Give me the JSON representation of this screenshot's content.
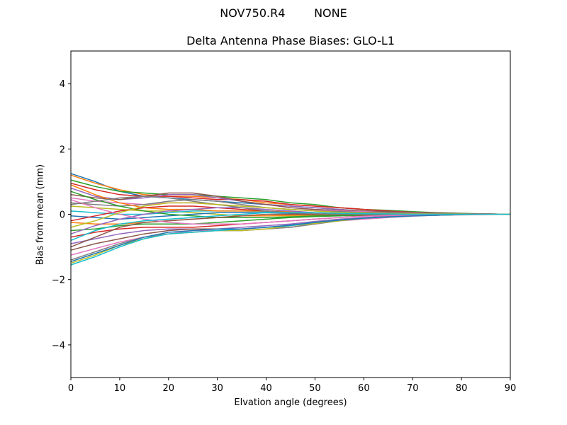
{
  "figure": {
    "suptitle": "NOV750.R4        NONE"
  },
  "chart_data": {
    "type": "line",
    "title": "Delta Antenna Phase Biases: GLO-L1",
    "xlabel": "Elvation angle (degrees)",
    "ylabel": "Bias from mean (mm)",
    "xlim": [
      0,
      90
    ],
    "ylim": [
      -5,
      5
    ],
    "xticks": [
      0,
      10,
      20,
      30,
      40,
      50,
      60,
      70,
      80,
      90
    ],
    "yticks": [
      -4,
      -2,
      0,
      2,
      4
    ],
    "ytick_labels": [
      "−4",
      "−2",
      "0",
      "2",
      "4"
    ],
    "grid": false,
    "colors": [
      "#1f77b4",
      "#ff7f0e",
      "#2ca02c",
      "#d62728",
      "#9467bd",
      "#8c564b",
      "#e377c2",
      "#7f7f7f",
      "#bcbd22",
      "#17becf"
    ],
    "x": [
      0,
      5,
      10,
      15,
      20,
      25,
      30,
      35,
      40,
      45,
      50,
      55,
      60,
      65,
      70,
      75,
      80,
      85,
      90
    ],
    "series": [
      {
        "values": [
          1.25,
          1.0,
          0.7,
          0.55,
          0.5,
          0.45,
          0.4,
          0.35,
          0.3,
          0.25,
          0.2,
          0.15,
          0.1,
          0.08,
          0.05,
          0.03,
          0.02,
          0.01,
          0.0
        ]
      },
      {
        "values": [
          1.2,
          0.95,
          0.75,
          0.6,
          0.55,
          0.55,
          0.5,
          0.45,
          0.35,
          0.3,
          0.25,
          0.2,
          0.15,
          0.1,
          0.07,
          0.04,
          0.02,
          0.01,
          0.0
        ]
      },
      {
        "values": [
          1.05,
          0.85,
          0.7,
          0.65,
          0.6,
          0.6,
          0.55,
          0.5,
          0.45,
          0.35,
          0.3,
          0.2,
          0.15,
          0.12,
          0.08,
          0.05,
          0.03,
          0.01,
          0.0
        ]
      },
      {
        "values": [
          0.95,
          0.75,
          0.6,
          0.55,
          0.55,
          0.5,
          0.45,
          0.45,
          0.4,
          0.3,
          0.25,
          0.2,
          0.15,
          0.1,
          0.06,
          0.04,
          0.02,
          0.01,
          0.0
        ]
      },
      {
        "values": [
          0.8,
          0.55,
          0.45,
          0.5,
          0.6,
          0.6,
          0.5,
          0.4,
          0.3,
          0.25,
          0.2,
          0.15,
          0.1,
          0.08,
          0.05,
          0.03,
          0.02,
          0.01,
          0.0
        ]
      },
      {
        "values": [
          0.6,
          0.5,
          0.45,
          0.55,
          0.65,
          0.65,
          0.55,
          0.4,
          0.3,
          0.2,
          0.15,
          0.12,
          0.1,
          0.08,
          0.05,
          0.03,
          0.02,
          0.01,
          0.0
        ]
      },
      {
        "values": [
          0.5,
          0.4,
          0.35,
          0.3,
          0.35,
          0.35,
          0.3,
          0.25,
          0.2,
          0.15,
          0.12,
          0.1,
          0.08,
          0.05,
          0.04,
          0.02,
          0.01,
          0.0,
          0.0
        ]
      },
      {
        "values": [
          0.35,
          0.3,
          0.25,
          0.3,
          0.4,
          0.45,
          0.4,
          0.3,
          0.2,
          0.15,
          0.1,
          0.08,
          0.06,
          0.05,
          0.03,
          0.02,
          0.01,
          0.0,
          0.0
        ]
      },
      {
        "values": [
          0.25,
          0.2,
          0.15,
          0.1,
          0.1,
          0.05,
          0.0,
          -0.05,
          -0.05,
          -0.05,
          -0.03,
          -0.02,
          0.0,
          0.02,
          0.02,
          0.01,
          0.01,
          0.0,
          0.0
        ]
      },
      {
        "values": [
          0.1,
          0.05,
          0.0,
          0.0,
          0.05,
          0.1,
          0.1,
          0.1,
          0.08,
          0.05,
          0.03,
          0.02,
          0.02,
          0.02,
          0.01,
          0.01,
          0.0,
          0.0,
          0.0
        ]
      },
      {
        "values": [
          -0.05,
          -0.1,
          -0.15,
          -0.1,
          -0.05,
          0.0,
          0.05,
          0.05,
          0.05,
          0.03,
          0.02,
          0.01,
          0.0,
          0.0,
          0.0,
          0.0,
          0.0,
          0.0,
          0.0
        ]
      },
      {
        "values": [
          -0.25,
          -0.3,
          -0.3,
          -0.25,
          -0.2,
          -0.15,
          -0.1,
          -0.05,
          -0.05,
          -0.03,
          -0.02,
          -0.01,
          0.0,
          0.0,
          0.0,
          0.0,
          0.0,
          0.0,
          0.0
        ]
      },
      {
        "values": [
          -0.5,
          -0.45,
          -0.35,
          -0.3,
          -0.3,
          -0.3,
          -0.25,
          -0.2,
          -0.15,
          -0.1,
          -0.07,
          -0.05,
          -0.03,
          -0.02,
          -0.01,
          0.0,
          0.0,
          0.0,
          0.0
        ]
      },
      {
        "values": [
          -0.7,
          -0.55,
          -0.45,
          -0.4,
          -0.4,
          -0.4,
          -0.35,
          -0.3,
          -0.25,
          -0.2,
          -0.15,
          -0.1,
          -0.05,
          -0.03,
          -0.02,
          -0.01,
          0.0,
          0.0,
          0.0
        ]
      },
      {
        "values": [
          -0.9,
          -0.75,
          -0.6,
          -0.5,
          -0.45,
          -0.45,
          -0.45,
          -0.4,
          -0.35,
          -0.3,
          -0.22,
          -0.15,
          -0.1,
          -0.06,
          -0.04,
          -0.02,
          -0.01,
          0.0,
          0.0
        ]
      },
      {
        "values": [
          -1.1,
          -0.9,
          -0.75,
          -0.6,
          -0.5,
          -0.45,
          -0.45,
          -0.45,
          -0.4,
          -0.35,
          -0.25,
          -0.18,
          -0.12,
          -0.08,
          -0.05,
          -0.03,
          -0.01,
          0.0,
          0.0
        ]
      },
      {
        "values": [
          -1.25,
          -1.05,
          -0.85,
          -0.7,
          -0.6,
          -0.5,
          -0.5,
          -0.5,
          -0.45,
          -0.4,
          -0.3,
          -0.2,
          -0.15,
          -0.1,
          -0.06,
          -0.03,
          -0.02,
          -0.01,
          0.0
        ]
      },
      {
        "values": [
          -1.4,
          -1.15,
          -0.9,
          -0.7,
          -0.6,
          -0.55,
          -0.5,
          -0.5,
          -0.45,
          -0.4,
          -0.3,
          -0.2,
          -0.12,
          -0.08,
          -0.05,
          -0.03,
          -0.01,
          0.0,
          0.0
        ]
      },
      {
        "values": [
          -1.5,
          -1.25,
          -0.95,
          -0.75,
          -0.6,
          -0.55,
          -0.5,
          -0.5,
          -0.45,
          -0.35,
          -0.28,
          -0.2,
          -0.12,
          -0.08,
          -0.05,
          -0.03,
          -0.01,
          0.0,
          0.0
        ]
      },
      {
        "values": [
          -1.55,
          -1.3,
          -1.0,
          -0.75,
          -0.6,
          -0.55,
          -0.5,
          -0.45,
          -0.4,
          -0.35,
          -0.25,
          -0.18,
          -0.12,
          -0.08,
          -0.05,
          -0.03,
          -0.01,
          0.0,
          0.0
        ]
      },
      {
        "values": [
          -1.45,
          -1.2,
          -0.95,
          -0.7,
          -0.55,
          -0.5,
          -0.45,
          -0.45,
          -0.4,
          -0.33,
          -0.25,
          -0.18,
          -0.12,
          -0.08,
          -0.05,
          -0.03,
          -0.01,
          0.0,
          0.0
        ]
      },
      {
        "values": [
          0.9,
          0.6,
          0.35,
          0.2,
          0.15,
          0.15,
          0.1,
          0.1,
          0.1,
          0.08,
          0.05,
          0.03,
          0.02,
          0.02,
          0.01,
          0.01,
          0.0,
          0.0,
          0.0
        ]
      },
      {
        "values": [
          0.7,
          0.45,
          0.25,
          0.1,
          0.0,
          -0.05,
          -0.1,
          -0.1,
          -0.1,
          -0.08,
          -0.05,
          -0.03,
          -0.02,
          -0.01,
          0.0,
          0.0,
          0.0,
          0.0,
          0.0
        ]
      },
      {
        "values": [
          -0.2,
          -0.05,
          0.1,
          0.2,
          0.25,
          0.25,
          0.2,
          0.15,
          0.1,
          0.05,
          0.02,
          0.0,
          0.0,
          0.0,
          0.0,
          0.0,
          0.0,
          0.0,
          0.0
        ]
      },
      {
        "values": [
          -0.6,
          -0.35,
          -0.15,
          0.0,
          0.1,
          0.15,
          0.2,
          0.2,
          0.15,
          0.1,
          0.05,
          0.03,
          0.02,
          0.01,
          0.01,
          0.0,
          0.0,
          0.0,
          0.0
        ]
      },
      {
        "values": [
          -1.0,
          -0.7,
          -0.4,
          -0.25,
          -0.2,
          -0.15,
          -0.1,
          -0.05,
          0.0,
          0.0,
          0.0,
          0.0,
          0.0,
          0.0,
          0.0,
          0.0,
          0.0,
          0.0,
          0.0
        ]
      },
      {
        "values": [
          0.45,
          0.2,
          0.0,
          -0.15,
          -0.25,
          -0.3,
          -0.3,
          -0.3,
          -0.25,
          -0.2,
          -0.15,
          -0.1,
          -0.06,
          -0.04,
          -0.02,
          -0.01,
          0.0,
          0.0,
          0.0
        ]
      },
      {
        "values": [
          0.3,
          0.4,
          0.5,
          0.55,
          0.5,
          0.4,
          0.3,
          0.2,
          0.1,
          0.05,
          0.02,
          0.0,
          0.0,
          0.0,
          0.0,
          0.0,
          0.0,
          0.0,
          0.0
        ]
      },
      {
        "values": [
          -0.4,
          -0.2,
          0.05,
          0.25,
          0.35,
          0.35,
          0.3,
          0.25,
          0.2,
          0.15,
          0.1,
          0.06,
          0.04,
          0.02,
          0.01,
          0.0,
          0.0,
          0.0,
          0.0
        ]
      },
      {
        "values": [
          -0.8,
          -0.5,
          -0.3,
          -0.2,
          -0.15,
          -0.1,
          -0.05,
          0.0,
          0.05,
          0.05,
          0.05,
          0.03,
          0.02,
          0.01,
          0.0,
          0.0,
          0.0,
          0.0,
          0.0
        ]
      }
    ]
  }
}
